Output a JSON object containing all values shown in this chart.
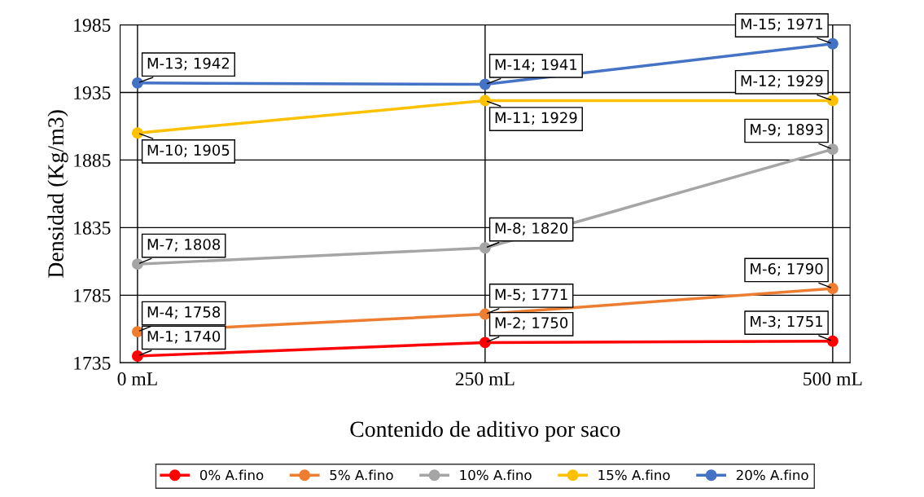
{
  "chart_data": {
    "type": "line",
    "xlabel": "Contenido de aditivo por saco",
    "ylabel": "Densidad (Kg/m3)",
    "categories": [
      "0 mL",
      "250 mL",
      "500 mL"
    ],
    "ylim": [
      1735,
      1985
    ],
    "yticks": [
      1735,
      1785,
      1835,
      1885,
      1935,
      1985
    ],
    "grid": true,
    "legend": "bottom",
    "marker": "circle",
    "line_style": "solid",
    "series": [
      {
        "name": "0% A.fino",
        "color": "#ff0000",
        "values": [
          1740,
          1750,
          1751
        ],
        "value_labels": [
          "M-1; 1740",
          "M-2; 1750",
          "M-3; 1751"
        ]
      },
      {
        "name": "5% A.fino",
        "color": "#ed7d31",
        "values": [
          1758,
          1771,
          1790
        ],
        "value_labels": [
          "M-4; 1758",
          "M-5; 1771",
          "M-6; 1790"
        ]
      },
      {
        "name": "10% A.fino",
        "color": "#a5a5a5",
        "values": [
          1808,
          1820,
          1893
        ],
        "value_labels": [
          "M-7; 1808",
          "M-8; 1820",
          "M-9; 1893"
        ]
      },
      {
        "name": "15% A.fino",
        "color": "#ffc000",
        "values": [
          1905,
          1929,
          1929
        ],
        "value_labels": [
          "M-10; 1905",
          "M-11; 1929",
          "M-12; 1929"
        ]
      },
      {
        "name": "20% A.fino",
        "color": "#4472c4",
        "values": [
          1942,
          1941,
          1971
        ],
        "value_labels": [
          "M-13; 1942",
          "M-14; 1941",
          "M-15; 1971"
        ]
      }
    ]
  }
}
